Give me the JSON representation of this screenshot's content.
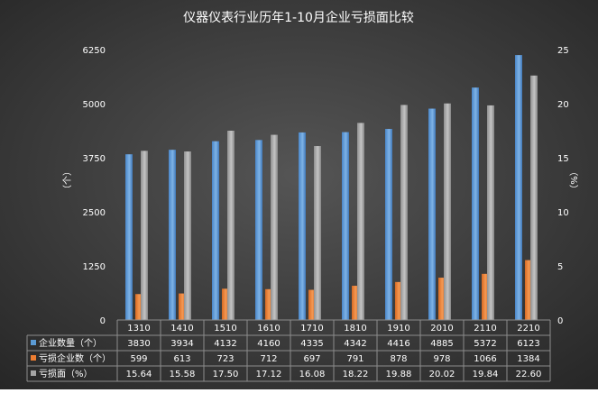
{
  "chart_data": {
    "type": "bar",
    "title": "仪器仪表行业历年1-10月企业亏损面比较",
    "ylabel_left": "（个）",
    "ylabel_right": "（%）",
    "ylim_left": [
      0,
      6250
    ],
    "yticks_left": [
      "0",
      "1250",
      "2500",
      "3750",
      "5000",
      "6250"
    ],
    "ylim_right": [
      0,
      25
    ],
    "yticks_right": [
      "0",
      "5",
      "10",
      "15",
      "20",
      "25"
    ],
    "grid": false,
    "categories": [
      "1310",
      "1410",
      "1510",
      "1610",
      "1710",
      "1810",
      "1910",
      "2010",
      "2110",
      "2210"
    ],
    "series": [
      {
        "name": "企业数量（个）",
        "axis": "left",
        "color": "#5b9bd5",
        "values": [
          3830,
          3934,
          4132,
          4160,
          4335,
          4342,
          4416,
          4885,
          5372,
          6123
        ],
        "labels": [
          "3830",
          "3934",
          "4132",
          "4160",
          "4335",
          "4342",
          "4416",
          "4885",
          "5372",
          "6123"
        ]
      },
      {
        "name": "亏损企业数（个）",
        "axis": "left",
        "color": "#ed7d31",
        "values": [
          599,
          613,
          723,
          712,
          697,
          791,
          878,
          978,
          1066,
          1384
        ],
        "labels": [
          "599",
          "613",
          "723",
          "712",
          "697",
          "791",
          "878",
          "978",
          "1066",
          "1384"
        ]
      },
      {
        "name": "亏损面（%）",
        "axis": "right",
        "color": "#a5a5a5",
        "values": [
          15.64,
          15.58,
          17.5,
          17.12,
          16.08,
          18.22,
          19.88,
          20.02,
          19.84,
          22.6
        ],
        "labels": [
          "15.64",
          "15.58",
          "17.50",
          "17.12",
          "16.08",
          "18.22",
          "19.88",
          "20.02",
          "19.84",
          "22.60"
        ]
      }
    ]
  }
}
